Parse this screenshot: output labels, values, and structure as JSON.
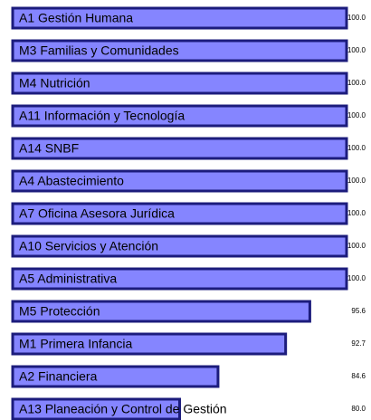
{
  "chart_data": {
    "type": "bar",
    "orientation": "horizontal",
    "categories": [
      "A1 Gestión Humana",
      "M3 Familias y Comunidades",
      "M4 Nutrición",
      "A11 Información y Tecnología",
      "A14 SNBF",
      "A4 Abastecimiento",
      "A7 Oficina Asesora Jurídica",
      "A10 Servicios y Atención",
      "A5 Administrativa",
      "M5 Protección",
      "M1 Primera Infancia",
      "A2 Financiera",
      "A13 Planeación y Control de Gestión"
    ],
    "values": [
      100,
      100,
      100,
      100,
      100,
      100,
      100,
      100,
      100,
      95.6,
      92.7,
      84.6,
      80
    ],
    "value_labels": [
      "100.0",
      "100.0",
      "100.0",
      "100.0",
      "100.0",
      "100.0",
      "100.0",
      "100.0",
      "100.0",
      "95.6",
      "92.7",
      "84.6",
      "80.0"
    ],
    "color": "#8585ff",
    "edge_color": "#1c1c7c",
    "xlim": [
      60,
      100
    ]
  }
}
